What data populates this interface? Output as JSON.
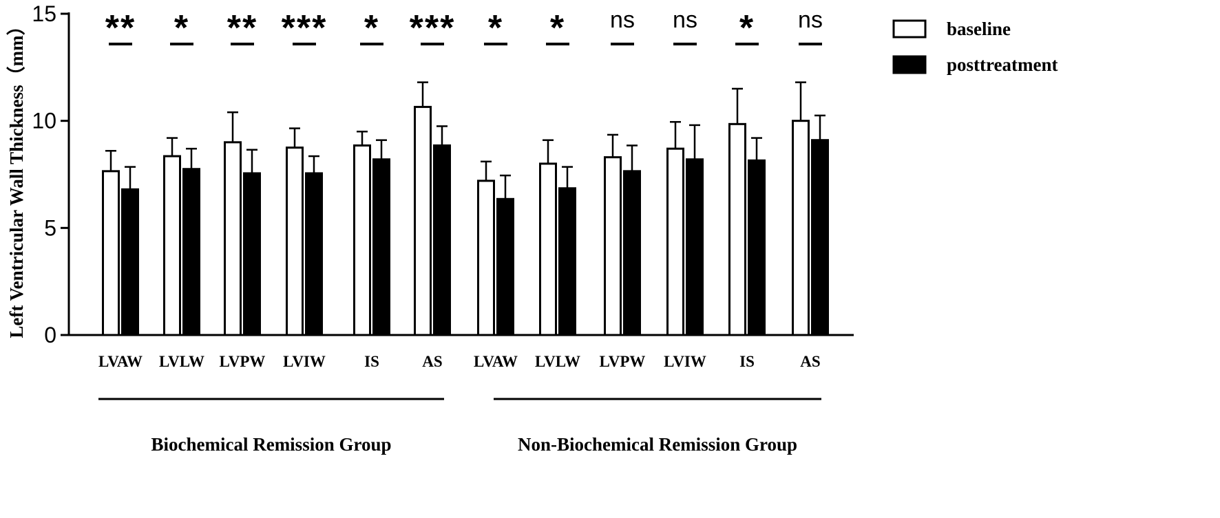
{
  "chart_data": {
    "type": "bar",
    "title": "",
    "xlabel": "",
    "ylabel": "Left Ventricular Wall Thickness（mm）",
    "ylim": [
      0,
      15
    ],
    "yticks": [
      0,
      5,
      10,
      15
    ],
    "categories": [
      "LVAW",
      "LVLW",
      "LVPW",
      "LVIW",
      "IS",
      "AS",
      "LVAW",
      "LVLW",
      "LVPW",
      "LVIW",
      "IS",
      "AS"
    ],
    "groups": [
      {
        "label": "Biochemical Remission Group",
        "category_range": [
          0,
          5
        ]
      },
      {
        "label": "Non-Biochemical Remission Group",
        "category_range": [
          6,
          11
        ]
      }
    ],
    "series": [
      {
        "name": "baseline",
        "fill": "#ffffff",
        "values": [
          7.65,
          8.35,
          9.0,
          8.75,
          8.85,
          10.65,
          7.2,
          8.0,
          8.3,
          8.7,
          9.85,
          10.0
        ],
        "errors": [
          0.95,
          0.85,
          1.4,
          0.9,
          0.65,
          1.15,
          0.9,
          1.1,
          1.05,
          1.25,
          1.65,
          1.8
        ]
      },
      {
        "name": "posttreatment",
        "fill": "#000000",
        "values": [
          6.8,
          7.75,
          7.55,
          7.55,
          8.2,
          8.85,
          6.35,
          6.85,
          7.65,
          8.2,
          8.15,
          9.1
        ],
        "errors": [
          1.05,
          0.95,
          1.1,
          0.8,
          0.9,
          0.9,
          1.1,
          1.0,
          1.2,
          1.6,
          1.05,
          1.15
        ]
      }
    ],
    "significance": [
      "**",
      "*",
      "**",
      "***",
      "*",
      "***",
      "*",
      "*",
      "ns",
      "ns",
      "*",
      "ns"
    ],
    "legend_position": "top-right",
    "grid": false
  }
}
